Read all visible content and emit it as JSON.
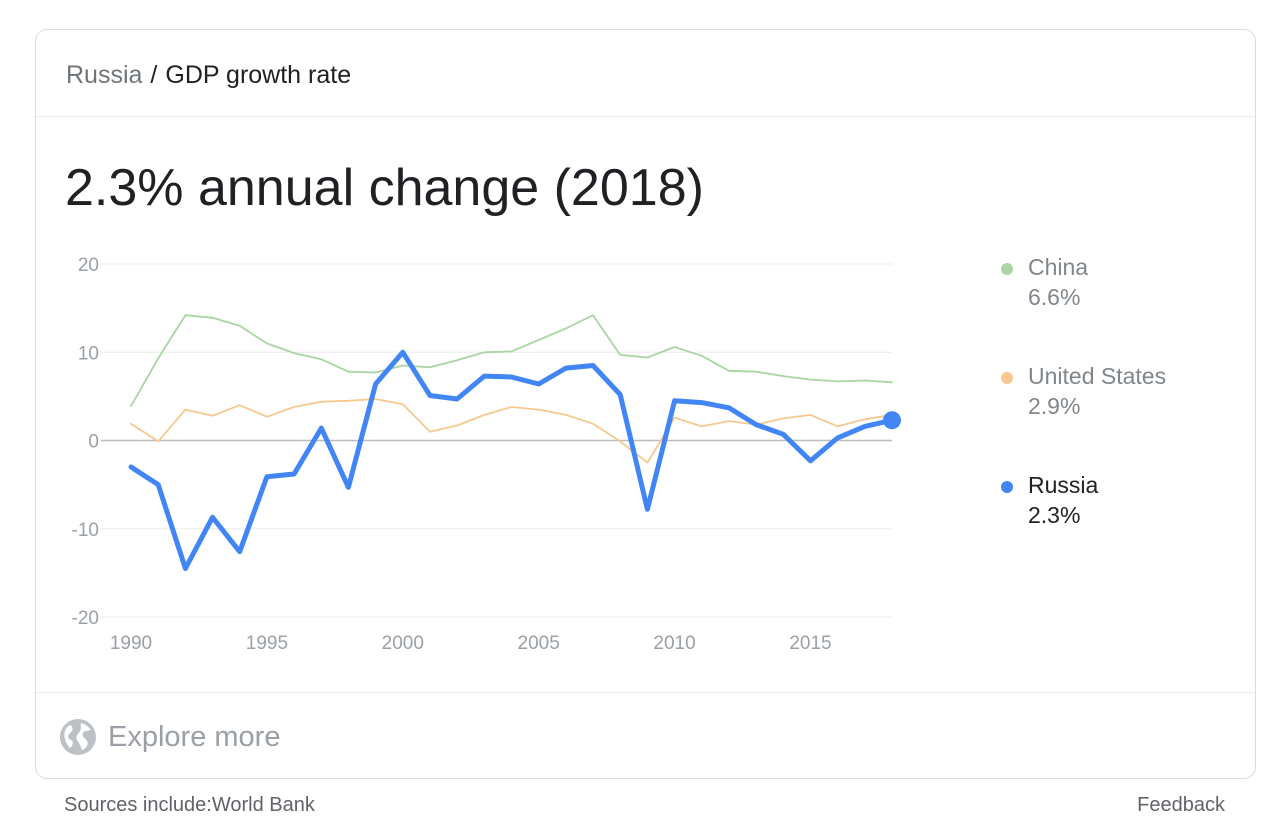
{
  "breadcrumb": {
    "country": "Russia",
    "separator": "/",
    "metric": "GDP growth rate"
  },
  "headline": "2.3% annual change (2018)",
  "legend": [
    {
      "name": "China",
      "value": "6.6%",
      "color": "#a8d5a2",
      "emphasis": false
    },
    {
      "name": "United States",
      "value": "2.9%",
      "color": "#f6c88f",
      "emphasis": false
    },
    {
      "name": "Russia",
      "value": "2.3%",
      "color": "#4285f4",
      "emphasis": true
    }
  ],
  "footer": {
    "explore_label": "Explore more",
    "explore_icon": "globe-icon",
    "sources": "Sources include:World Bank",
    "feedback": "Feedback"
  },
  "chart_data": {
    "type": "line",
    "title": "",
    "xlabel": "",
    "ylabel": "",
    "xlim": [
      1990,
      2018
    ],
    "ylim": [
      -20,
      20
    ],
    "x_ticks": [
      1990,
      1995,
      2000,
      2005,
      2010,
      2015
    ],
    "x_tick_labels": [
      "1990",
      "1995",
      "2000",
      "2005",
      "2010",
      "2015"
    ],
    "y_ticks": [
      20,
      10,
      0,
      -10,
      -20
    ],
    "y_tick_labels": [
      "20",
      "10",
      "0",
      "-10",
      "-20"
    ],
    "grid": true,
    "legend_position": "right",
    "x": [
      1990,
      1991,
      1992,
      1993,
      1994,
      1995,
      1996,
      1997,
      1998,
      1999,
      2000,
      2001,
      2002,
      2003,
      2004,
      2005,
      2006,
      2007,
      2008,
      2009,
      2010,
      2011,
      2012,
      2013,
      2014,
      2015,
      2016,
      2017,
      2018
    ],
    "series": [
      {
        "name": "China",
        "color": "#a8d5a2",
        "values": [
          3.9,
          9.3,
          14.2,
          13.9,
          13.0,
          11.0,
          9.9,
          9.2,
          7.8,
          7.7,
          8.5,
          8.3,
          9.1,
          10.0,
          10.1,
          11.4,
          12.7,
          14.2,
          9.7,
          9.4,
          10.6,
          9.6,
          7.9,
          7.8,
          7.3,
          6.9,
          6.7,
          6.8,
          6.6
        ]
      },
      {
        "name": "United States",
        "color": "#f6c88f",
        "values": [
          1.9,
          -0.1,
          3.5,
          2.8,
          4.0,
          2.7,
          3.8,
          4.4,
          4.5,
          4.7,
          4.1,
          1.0,
          1.7,
          2.9,
          3.8,
          3.5,
          2.9,
          1.9,
          -0.1,
          -2.5,
          2.6,
          1.6,
          2.2,
          1.8,
          2.5,
          2.9,
          1.6,
          2.4,
          2.9
        ]
      },
      {
        "name": "Russia",
        "color": "#4285f4",
        "values": [
          -3.0,
          -5.0,
          -14.5,
          -8.7,
          -12.6,
          -4.1,
          -3.8,
          1.4,
          -5.3,
          6.4,
          10.0,
          5.1,
          4.7,
          7.3,
          7.2,
          6.4,
          8.2,
          8.5,
          5.2,
          -7.8,
          4.5,
          4.3,
          3.7,
          1.8,
          0.7,
          -2.3,
          0.3,
          1.6,
          2.3
        ]
      }
    ]
  }
}
